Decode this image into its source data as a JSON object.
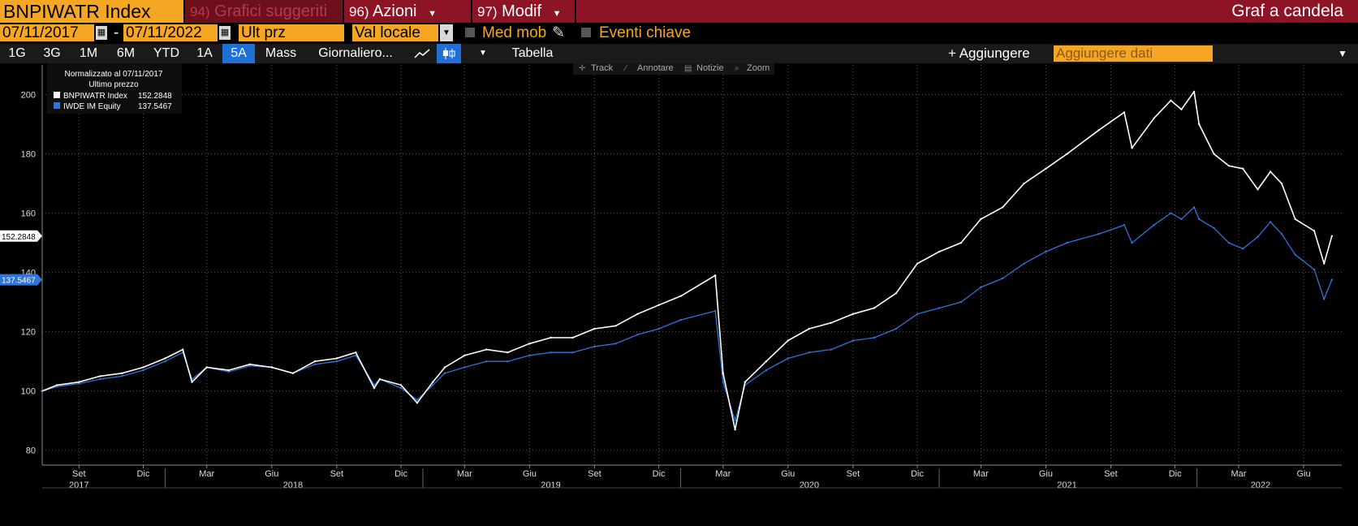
{
  "header": {
    "ticker": "BNPIWATR Index",
    "menu1_num": "94)",
    "menu1_label": "Grafici suggeriti",
    "menu2_num": "96)",
    "menu2_label": "Azioni",
    "menu3_num": "97)",
    "menu3_label": "Modif",
    "chart_type_label": "Graf a candela"
  },
  "options": {
    "start_date": "07/11/2017",
    "end_date": "07/11/2022",
    "dash": "-",
    "price_field": "Ult prz",
    "currency": "Val locale",
    "moving_avg_label": "Med mob",
    "key_events_label": "Eventi chiave"
  },
  "periods": [
    "1G",
    "3G",
    "1M",
    "6M",
    "YTD",
    "1A",
    "5A",
    "Mass",
    "Giornaliero..."
  ],
  "active_period": "5A",
  "toolbar": {
    "table_label": "Tabella",
    "add_label": "+ Aggiungere",
    "add_data_placeholder": "Aggiungere dati"
  },
  "chart_tools": [
    "Track",
    "Annotare",
    "Notizie",
    "Zoom"
  ],
  "legend": {
    "title": "Normalizzato al 07/11/2017",
    "subtitle": "Ultimo prezzo",
    "series1": "BNPIWATR Index",
    "value1": "152.2848",
    "series2": "IWDE IM Equity",
    "value2": "137.5467"
  },
  "colors": {
    "series1": "#ffffff",
    "series2": "#2f74d9",
    "accent": "#f5a623",
    "menubar": "#8c1424"
  },
  "chart_data": {
    "type": "line",
    "ylim": [
      75,
      210
    ],
    "yticks": [
      80,
      100,
      120,
      140,
      160,
      180,
      200
    ],
    "months": [
      {
        "label": "Set",
        "x": "2017-09-01"
      },
      {
        "label": "Dic",
        "x": "2017-12-01"
      },
      {
        "label": "Mar",
        "x": "2018-03-01"
      },
      {
        "label": "Giu",
        "x": "2018-06-01"
      },
      {
        "label": "Set",
        "x": "2018-09-01"
      },
      {
        "label": "Dic",
        "x": "2018-12-01"
      },
      {
        "label": "Mar",
        "x": "2019-03-01"
      },
      {
        "label": "Giu",
        "x": "2019-06-01"
      },
      {
        "label": "Set",
        "x": "2019-09-01"
      },
      {
        "label": "Dic",
        "x": "2019-12-01"
      },
      {
        "label": "Mar",
        "x": "2020-03-01"
      },
      {
        "label": "Giu",
        "x": "2020-06-01"
      },
      {
        "label": "Set",
        "x": "2020-09-01"
      },
      {
        "label": "Dic",
        "x": "2020-12-01"
      },
      {
        "label": "Mar",
        "x": "2021-03-01"
      },
      {
        "label": "Giu",
        "x": "2021-06-01"
      },
      {
        "label": "Set",
        "x": "2021-09-01"
      },
      {
        "label": "Dic",
        "x": "2021-12-01"
      },
      {
        "label": "Mar",
        "x": "2022-03-01"
      },
      {
        "label": "Giu",
        "x": "2022-06-01"
      }
    ],
    "years": [
      {
        "label": "2017",
        "x": "2017-09-01"
      },
      {
        "label": "2018",
        "x": "2018-07-01"
      },
      {
        "label": "2019",
        "x": "2019-07-01"
      },
      {
        "label": "2020",
        "x": "2020-07-01"
      },
      {
        "label": "2021",
        "x": "2021-07-01"
      },
      {
        "label": "2022",
        "x": "2022-04-01"
      }
    ],
    "year_dividers": [
      "2018-01-01",
      "2019-01-01",
      "2020-01-01",
      "2021-01-01",
      "2022-01-01"
    ],
    "series": [
      {
        "name": "BNPIWATR Index",
        "x": [
          "2017-07-11",
          "2017-08-01",
          "2017-09-01",
          "2017-10-01",
          "2017-11-01",
          "2017-12-01",
          "2018-01-01",
          "2018-01-26",
          "2018-02-08",
          "2018-03-01",
          "2018-04-01",
          "2018-05-01",
          "2018-06-01",
          "2018-07-01",
          "2018-08-01",
          "2018-09-01",
          "2018-09-28",
          "2018-10-24",
          "2018-11-01",
          "2018-12-01",
          "2018-12-24",
          "2019-01-15",
          "2019-02-01",
          "2019-03-01",
          "2019-04-01",
          "2019-05-01",
          "2019-06-01",
          "2019-07-01",
          "2019-08-01",
          "2019-09-01",
          "2019-10-01",
          "2019-11-01",
          "2019-12-01",
          "2020-01-01",
          "2020-02-19",
          "2020-03-01",
          "2020-03-18",
          "2020-04-01",
          "2020-05-01",
          "2020-06-01",
          "2020-07-01",
          "2020-08-01",
          "2020-09-01",
          "2020-10-01",
          "2020-11-01",
          "2020-12-01",
          "2021-01-01",
          "2021-02-01",
          "2021-03-01",
          "2021-04-01",
          "2021-05-01",
          "2021-06-01",
          "2021-07-01",
          "2021-08-15",
          "2021-09-20",
          "2021-10-01",
          "2021-11-01",
          "2021-11-25",
          "2021-12-10",
          "2021-12-28",
          "2022-01-04",
          "2022-01-25",
          "2022-02-15",
          "2022-03-07",
          "2022-03-28",
          "2022-04-15",
          "2022-05-01",
          "2022-05-20",
          "2022-06-16",
          "2022-06-30",
          "2022-07-11"
        ],
        "values": [
          100,
          102,
          103,
          105,
          106,
          108,
          111,
          114,
          103,
          108,
          107,
          109,
          108,
          106,
          110,
          111,
          113,
          101,
          104,
          102,
          96,
          103,
          108,
          112,
          114,
          113,
          116,
          118,
          118,
          121,
          122,
          126,
          129,
          132,
          139,
          106,
          87,
          103,
          110,
          117,
          121,
          123,
          126,
          128,
          133,
          143,
          147,
          150,
          158,
          162,
          170,
          175,
          180,
          188,
          194,
          182,
          192,
          198,
          195,
          201,
          190,
          180,
          176,
          175,
          168,
          174,
          170,
          158,
          154,
          143,
          152.2848
        ]
      },
      {
        "name": "IWDE IM Equity",
        "x": [
          "2017-07-11",
          "2017-08-01",
          "2017-09-01",
          "2017-10-01",
          "2017-11-01",
          "2017-12-01",
          "2018-01-01",
          "2018-01-26",
          "2018-02-08",
          "2018-03-01",
          "2018-04-01",
          "2018-05-01",
          "2018-06-01",
          "2018-07-01",
          "2018-08-01",
          "2018-09-01",
          "2018-09-28",
          "2018-10-24",
          "2018-11-01",
          "2018-12-01",
          "2018-12-24",
          "2019-01-15",
          "2019-02-01",
          "2019-03-01",
          "2019-04-01",
          "2019-05-01",
          "2019-06-01",
          "2019-07-01",
          "2019-08-01",
          "2019-09-01",
          "2019-10-01",
          "2019-11-01",
          "2019-12-01",
          "2020-01-01",
          "2020-02-19",
          "2020-03-01",
          "2020-03-18",
          "2020-04-01",
          "2020-05-01",
          "2020-06-01",
          "2020-07-01",
          "2020-08-01",
          "2020-09-01",
          "2020-10-01",
          "2020-11-01",
          "2020-12-01",
          "2021-01-01",
          "2021-02-01",
          "2021-03-01",
          "2021-04-01",
          "2021-05-01",
          "2021-06-01",
          "2021-07-01",
          "2021-08-15",
          "2021-09-20",
          "2021-10-01",
          "2021-11-01",
          "2021-11-25",
          "2021-12-10",
          "2021-12-28",
          "2022-01-04",
          "2022-01-25",
          "2022-02-15",
          "2022-03-07",
          "2022-03-28",
          "2022-04-15",
          "2022-05-01",
          "2022-05-20",
          "2022-06-16",
          "2022-06-30",
          "2022-07-11"
        ],
        "values": [
          100,
          101.5,
          102.5,
          104,
          105,
          107,
          110,
          113,
          104,
          108,
          106.5,
          108.5,
          108,
          106,
          109,
          110,
          112,
          102,
          104,
          101,
          97,
          102,
          106,
          108,
          110,
          110,
          112,
          113,
          113,
          115,
          116,
          119,
          121,
          124,
          127,
          103,
          90,
          102,
          107,
          111,
          113,
          114,
          117,
          118,
          121,
          126,
          128,
          130,
          135,
          138,
          143,
          147,
          150,
          153,
          156,
          150,
          156,
          160,
          158,
          162,
          158,
          155,
          150,
          148,
          152,
          157,
          153,
          146,
          141,
          131,
          137.5467
        ]
      }
    ]
  }
}
